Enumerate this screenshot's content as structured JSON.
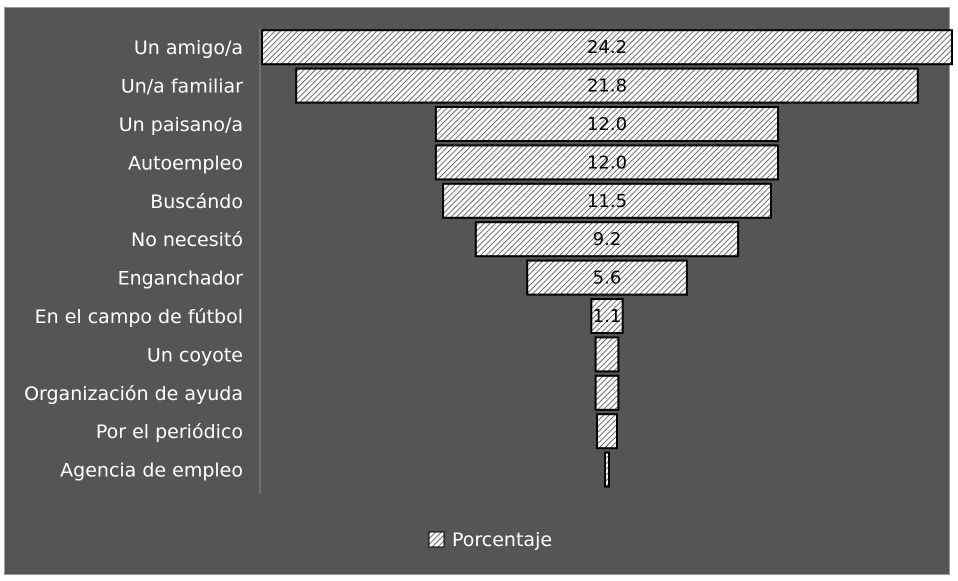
{
  "chart_data": {
    "type": "bar",
    "orientation": "horizontal-centered",
    "categories": [
      "Un amigo/a",
      "Un/a familiar",
      "Un paisano/a",
      "Autoempleo",
      "Buscándo",
      "No necesitó",
      "Enganchador",
      "En el campo de fútbol",
      "Un coyote",
      "Organización de ayuda",
      "Por el periódico",
      "Agencia de empleo"
    ],
    "series": [
      {
        "name": "Porcentaje",
        "values": [
          24.2,
          21.8,
          12.0,
          12.0,
          11.5,
          9.2,
          5.6,
          1.1,
          0.8,
          0.8,
          0.7,
          0.1
        ],
        "data_labels": [
          "24.2",
          "21.8",
          "12.0",
          "12.0",
          "11.5",
          "9.2",
          "5.6",
          "1.1",
          "",
          "",
          "",
          ""
        ]
      }
    ],
    "title": "",
    "xlabel": "",
    "ylabel": "",
    "xlim": [
      0,
      24.2
    ],
    "grid": false,
    "legend": {
      "position": "bottom",
      "entries": [
        "Porcentaje"
      ]
    },
    "colors": {
      "background": "#555555",
      "bar_fill": "#ffffff",
      "hatch": "#222222",
      "bar_border": "#000000",
      "text": "#ffffff"
    }
  }
}
